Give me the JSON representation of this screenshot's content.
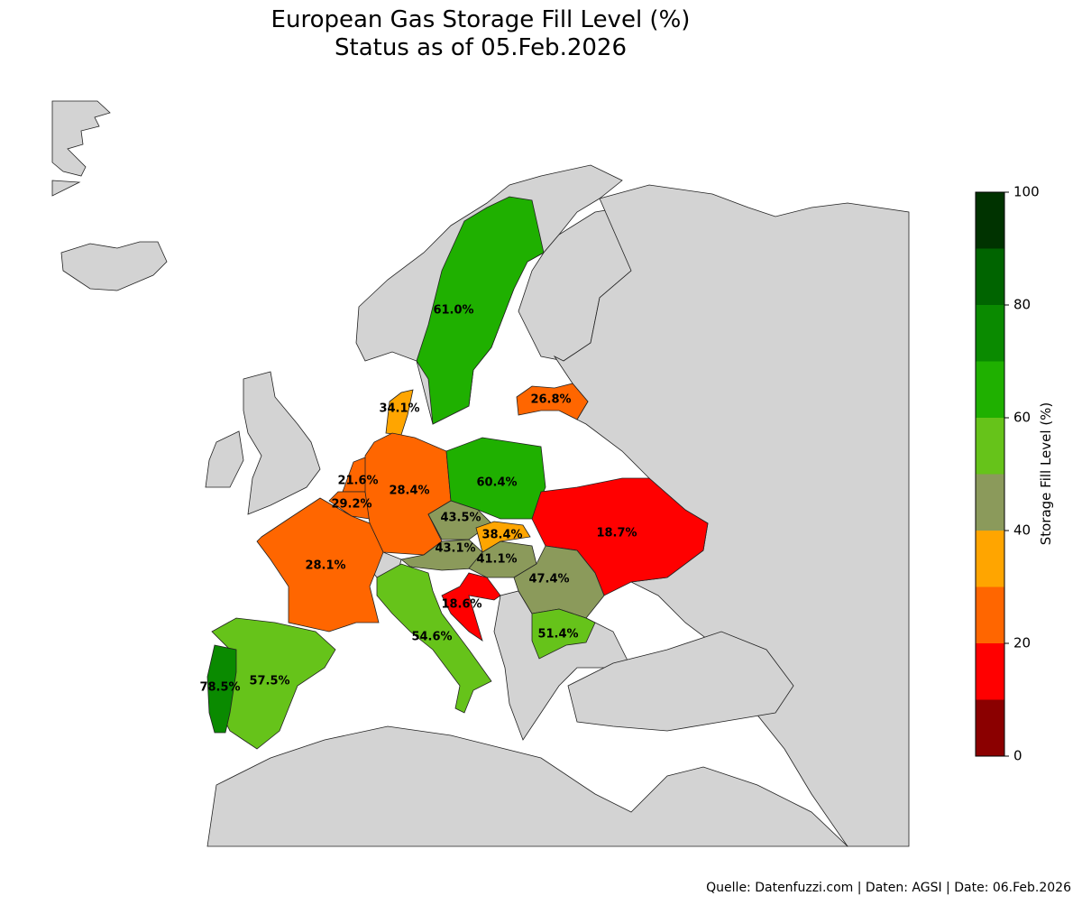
{
  "header": {
    "title": "European Gas Storage Fill Level (%)",
    "subtitle": "Status as of 05.Feb.2026"
  },
  "map": {
    "values": [
      61.0,
      34.1,
      26.8,
      21.6,
      29.2,
      28.4,
      60.4,
      43.5,
      38.4,
      18.7,
      43.1,
      41.1,
      47.4,
      28.1,
      18.6,
      54.6,
      51.4,
      57.5,
      78.5
    ],
    "value_labels": [
      "61.0%",
      "34.1%",
      "26.8%",
      "21.6%",
      "29.2%",
      "28.4%",
      "60.4%",
      "43.5%",
      "38.4%",
      "18.7%",
      "43.1%",
      "41.1%",
      "47.4%",
      "28.1%",
      "18.6%",
      "54.6%",
      "51.4%",
      "57.5%",
      "78.5%"
    ]
  },
  "colorbar": {
    "label": "Storage Fill Level (%)",
    "lim": [
      0,
      100
    ],
    "ticks": [
      0,
      20,
      40,
      60,
      80,
      100
    ],
    "colors": [
      "#8b0000",
      "#ff0000",
      "#ff6600",
      "#ffa500",
      "#8b9a5b",
      "#66c31a",
      "#1fb000",
      "#0a8a00",
      "#006400",
      "#003300"
    ]
  },
  "footer": {
    "source": "Quelle: Datenfuzzi.com | Daten: AGSI | Date: 06.Feb.2026"
  }
}
